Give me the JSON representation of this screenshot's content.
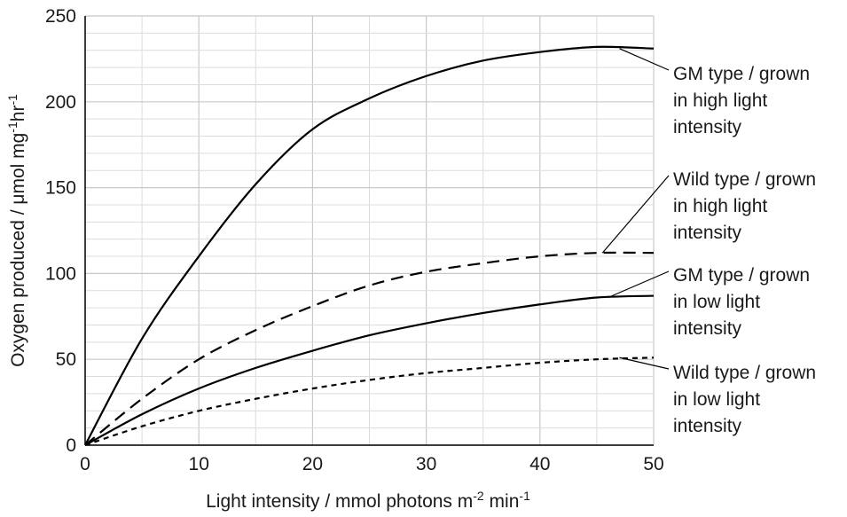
{
  "chart_data": {
    "type": "line",
    "title": "",
    "xlabel": "Light intensity / mmol photons m",
    "xlabel_sup1": "-2",
    "xlabel_mid": " min",
    "xlabel_sup2": "-1",
    "ylabel": "Oxygen produced / μmol mg",
    "ylabel_sup1": "-1",
    "ylabel_mid": "hr",
    "ylabel_sup2": "-1",
    "xlim": [
      0,
      50
    ],
    "ylim": [
      0,
      250
    ],
    "x_ticks": [
      0,
      10,
      20,
      30,
      40,
      50
    ],
    "x_tick_labels": [
      "0",
      "10",
      "20",
      "30",
      "40",
      "50"
    ],
    "y_ticks": [
      0,
      50,
      100,
      150,
      200,
      250
    ],
    "y_tick_labels": [
      "0",
      "50",
      "100",
      "150",
      "200",
      "250"
    ],
    "x_minor_step": 5,
    "y_minor_step": 10,
    "grid": true,
    "series": [
      {
        "name": "GM type / grown in high light intensity",
        "label_lines": [
          "GM type / grown",
          "in high light",
          "intensity"
        ],
        "style": "solid",
        "color": "#000000",
        "x": [
          0,
          5,
          10,
          15,
          20,
          25,
          30,
          35,
          40,
          45,
          50
        ],
        "y": [
          0,
          62,
          110,
          152,
          184,
          202,
          215,
          224,
          229,
          232,
          231
        ]
      },
      {
        "name": "Wild type / grown in high light intensity",
        "label_lines": [
          "Wild type / grown",
          "in high light",
          "intensity"
        ],
        "style": "long-dash",
        "color": "#000000",
        "x": [
          0,
          5,
          10,
          15,
          20,
          25,
          30,
          35,
          40,
          45,
          50
        ],
        "y": [
          0,
          27,
          50,
          67,
          81,
          93,
          101,
          106,
          110,
          112,
          112
        ]
      },
      {
        "name": "GM type / grown in low light intensity",
        "label_lines": [
          "GM type / grown",
          "in low light",
          "intensity"
        ],
        "style": "solid",
        "color": "#000000",
        "x": [
          0,
          5,
          10,
          15,
          20,
          25,
          30,
          35,
          40,
          45,
          50
        ],
        "y": [
          0,
          18,
          33,
          45,
          55,
          64,
          71,
          77,
          82,
          86,
          87
        ]
      },
      {
        "name": "Wild type / grown in low light intensity",
        "label_lines": [
          "Wild type / grown",
          "in low light",
          "intensity"
        ],
        "style": "short-dash",
        "color": "#000000",
        "x": [
          0,
          5,
          10,
          15,
          20,
          25,
          30,
          35,
          40,
          45,
          50
        ],
        "y": [
          0,
          11,
          20,
          27,
          33,
          38,
          42,
          45,
          48,
          50,
          51
        ]
      }
    ],
    "annotation_points": [
      {
        "x": 47,
        "y": 231
      },
      {
        "x": 45.5,
        "y": 112
      },
      {
        "x": 46,
        "y": 86
      },
      {
        "x": 47,
        "y": 51
      }
    ]
  }
}
